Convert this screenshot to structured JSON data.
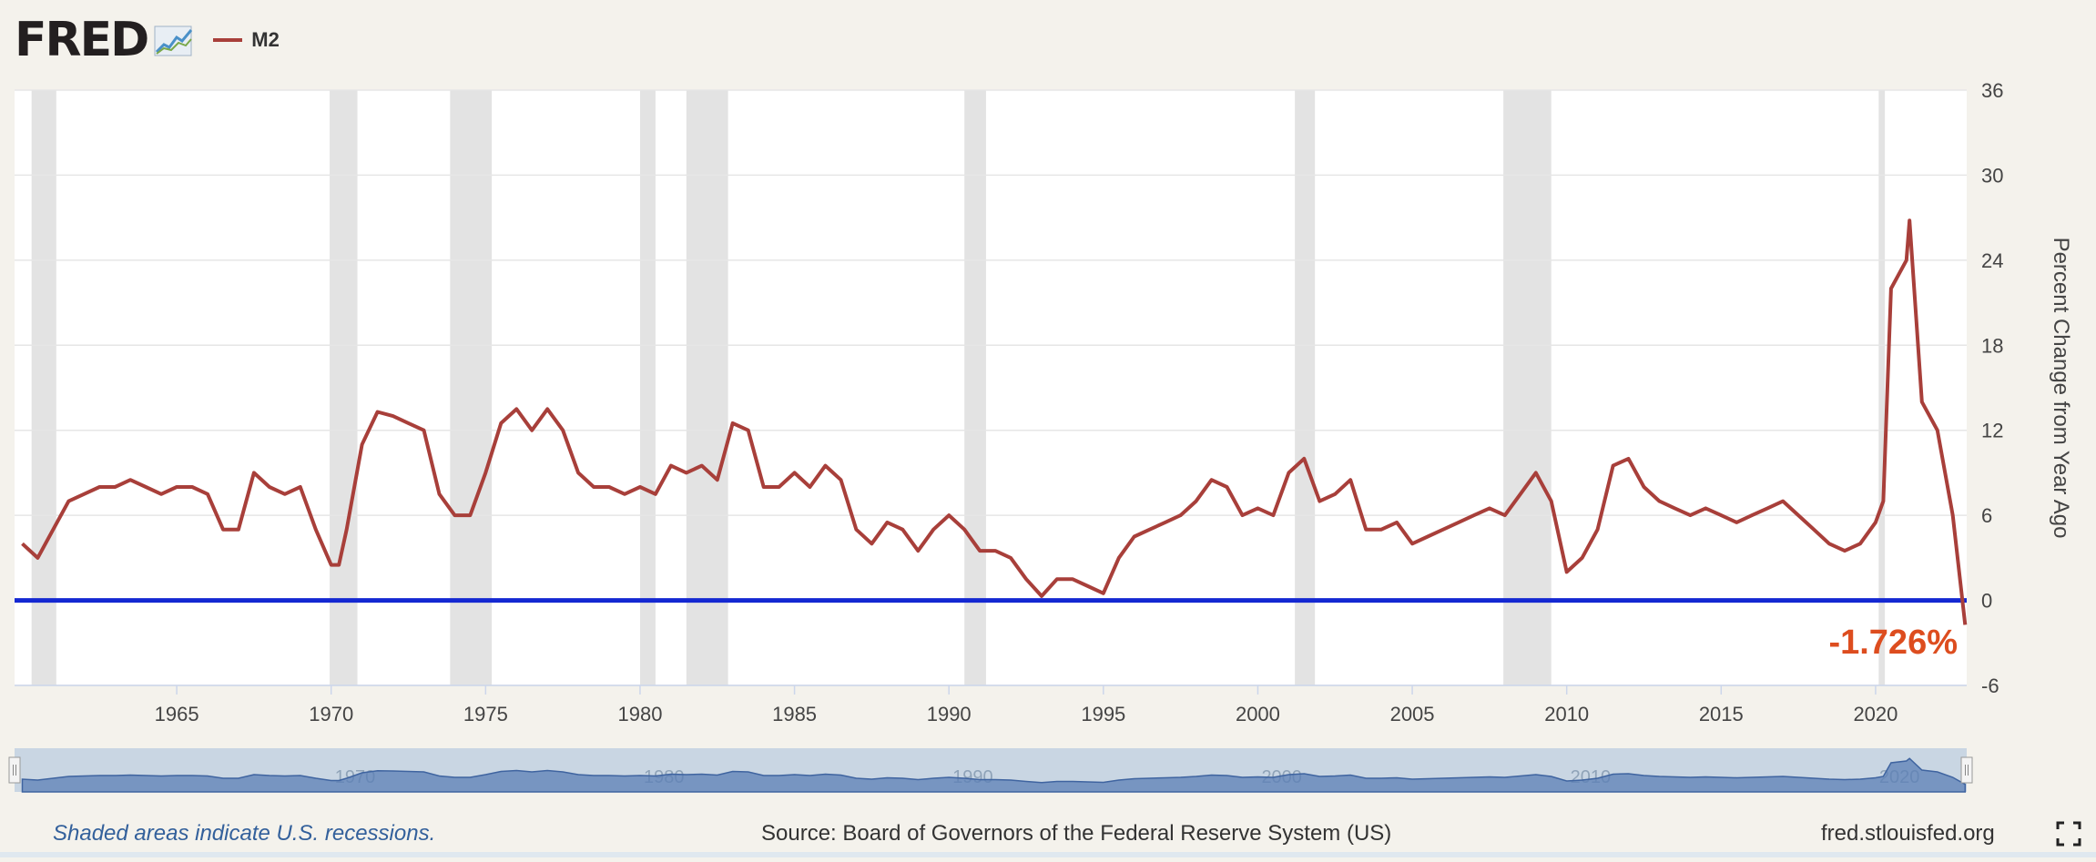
{
  "header": {
    "logo_text": "FRED",
    "legend_label": "M2",
    "series_color": "#a83f3a"
  },
  "chart_data": {
    "type": "line",
    "series": [
      {
        "name": "M2",
        "color": "#a83f3a",
        "x": [
          1960.0,
          1960.5,
          1961.0,
          1961.5,
          1962.0,
          1962.5,
          1963.0,
          1963.5,
          1964.0,
          1964.5,
          1965.0,
          1965.5,
          1966.0,
          1966.5,
          1967.0,
          1967.5,
          1968.0,
          1968.5,
          1969.0,
          1969.5,
          1970.0,
          1970.25,
          1970.5,
          1971.0,
          1971.5,
          1972.0,
          1972.5,
          1973.0,
          1973.5,
          1974.0,
          1974.5,
          1975.0,
          1975.5,
          1976.0,
          1976.5,
          1977.0,
          1977.5,
          1978.0,
          1978.5,
          1979.0,
          1979.5,
          1980.0,
          1980.5,
          1981.0,
          1981.5,
          1982.0,
          1982.5,
          1983.0,
          1983.5,
          1984.0,
          1984.5,
          1985.0,
          1985.5,
          1986.0,
          1986.5,
          1987.0,
          1987.5,
          1988.0,
          1988.5,
          1989.0,
          1989.5,
          1990.0,
          1990.5,
          1991.0,
          1991.5,
          1992.0,
          1992.5,
          1993.0,
          1993.5,
          1994.0,
          1994.5,
          1995.0,
          1995.5,
          1996.0,
          1996.5,
          1997.0,
          1997.5,
          1998.0,
          1998.5,
          1999.0,
          1999.5,
          2000.0,
          2000.5,
          2001.0,
          2001.5,
          2002.0,
          2002.5,
          2003.0,
          2003.5,
          2004.0,
          2004.5,
          2005.0,
          2005.5,
          2006.0,
          2006.5,
          2007.0,
          2007.5,
          2008.0,
          2008.5,
          2009.0,
          2009.5,
          2010.0,
          2010.5,
          2011.0,
          2011.5,
          2012.0,
          2012.5,
          2013.0,
          2013.5,
          2014.0,
          2014.5,
          2015.0,
          2015.5,
          2016.0,
          2016.5,
          2017.0,
          2017.5,
          2018.0,
          2018.5,
          2019.0,
          2019.5,
          2020.0,
          2020.25,
          2020.5,
          2021.0,
          2021.1,
          2021.5,
          2022.0,
          2022.5,
          2022.9
        ],
        "values": [
          4.0,
          3.0,
          5.0,
          7.0,
          7.5,
          8.0,
          8.0,
          8.5,
          8.0,
          7.5,
          8.0,
          8.0,
          7.5,
          5.0,
          5.0,
          9.0,
          8.0,
          7.5,
          8.0,
          5.0,
          2.5,
          2.5,
          5.0,
          11.0,
          13.3,
          13.0,
          12.5,
          12.0,
          7.5,
          6.0,
          6.0,
          9.0,
          12.5,
          13.5,
          12.0,
          13.5,
          12.0,
          9.0,
          8.0,
          8.0,
          7.5,
          8.0,
          7.5,
          9.5,
          9.0,
          9.5,
          8.5,
          12.5,
          12.0,
          8.0,
          8.0,
          9.0,
          8.0,
          9.5,
          8.5,
          5.0,
          4.0,
          5.5,
          5.0,
          3.5,
          5.0,
          6.0,
          5.0,
          3.5,
          3.5,
          3.0,
          1.5,
          0.3,
          1.5,
          1.5,
          1.0,
          0.5,
          3.0,
          4.5,
          5.0,
          5.5,
          6.0,
          7.0,
          8.5,
          8.0,
          6.0,
          6.5,
          6.0,
          9.0,
          10.0,
          7.0,
          7.5,
          8.5,
          5.0,
          5.0,
          5.5,
          4.0,
          4.5,
          5.0,
          5.5,
          6.0,
          6.5,
          6.0,
          7.5,
          9.0,
          7.0,
          2.0,
          3.0,
          5.0,
          9.5,
          10.0,
          8.0,
          7.0,
          6.5,
          6.0,
          6.5,
          6.0,
          5.5,
          6.0,
          6.5,
          7.0,
          6.0,
          5.0,
          4.0,
          3.5,
          4.0,
          5.5,
          7.0,
          22.0,
          24.0,
          26.8,
          14.0,
          12.0,
          6.0,
          -1.726
        ]
      }
    ],
    "ylabel": "Percent Change from Year Ago",
    "yticks": [
      -6,
      0,
      6,
      12,
      18,
      24,
      30,
      36
    ],
    "ylim": [
      -6,
      36
    ],
    "xticks": [
      1965,
      1970,
      1975,
      1980,
      1985,
      1990,
      1995,
      2000,
      2005,
      2010,
      2015,
      2020
    ],
    "xlim": [
      1959.75,
      2022.95
    ],
    "recessions": [
      [
        1960.3,
        1961.1
      ],
      [
        1969.95,
        1970.85
      ],
      [
        1973.85,
        1975.2
      ],
      [
        1980.0,
        1980.5
      ],
      [
        1981.5,
        1982.85
      ],
      [
        1990.5,
        1991.2
      ],
      [
        2001.2,
        2001.85
      ],
      [
        2007.95,
        2009.5
      ],
      [
        2020.1,
        2020.3
      ]
    ],
    "reference_line": {
      "value": 0,
      "color": "#1428d2"
    },
    "annotation": {
      "text": "-1.726%",
      "color": "#dd4d1f"
    },
    "navigator_labels": [
      "1970",
      "1980",
      "1990",
      "2000",
      "2010",
      "2020"
    ],
    "grid": true
  },
  "footer": {
    "recession_note": "Shaded areas indicate U.S. recessions.",
    "source": "Source: Board of Governors of the Federal Reserve System (US)",
    "site": "fred.stlouisfed.org"
  }
}
